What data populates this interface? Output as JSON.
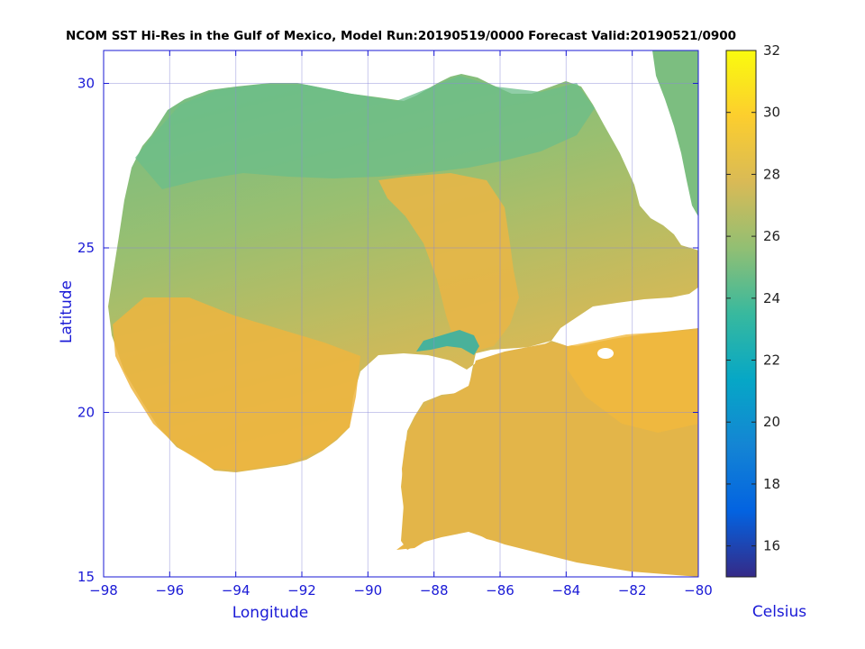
{
  "title": "NCOM SST Hi-Res in the Gulf of Mexico, Model Run:20190519/0000 Forecast Valid:20190521/0900",
  "axes": {
    "xlabel": "Longitude",
    "ylabel": "Latitude",
    "xlim": [
      -98,
      -80
    ],
    "ylim": [
      15,
      31
    ],
    "xticks": [
      -98,
      -96,
      -94,
      -92,
      -90,
      -88,
      -86,
      -84,
      -82,
      -80
    ],
    "yticks": [
      15,
      20,
      25,
      30
    ],
    "grid": true,
    "axis_color": "#1a1ad6"
  },
  "colorbar": {
    "title": "Celsius",
    "min": 15,
    "max": 32,
    "ticks": [
      16,
      18,
      20,
      22,
      24,
      26,
      28,
      30,
      32
    ],
    "colormap": "parula",
    "stops": [
      "#352a87",
      "#0363e1",
      "#1485d4",
      "#06a7c6",
      "#38b99e",
      "#92bf73",
      "#d9ba56",
      "#fcce2e",
      "#f9fb0e"
    ]
  },
  "map_data": {
    "type": "filled-field",
    "variable": "Sea Surface Temperature",
    "units": "Celsius",
    "north_gulf_shelf_temp_c": 25.5,
    "central_gulf_temp_c": 26.5,
    "loop_current_temp_c": 28.3,
    "southwest_gulf_temp_c": 28.6,
    "caribbean_temp_c": 28.4,
    "yucatan_cool_filament_temp_c": 23.5,
    "atlantic_northeast_temp_c": 25.5
  }
}
